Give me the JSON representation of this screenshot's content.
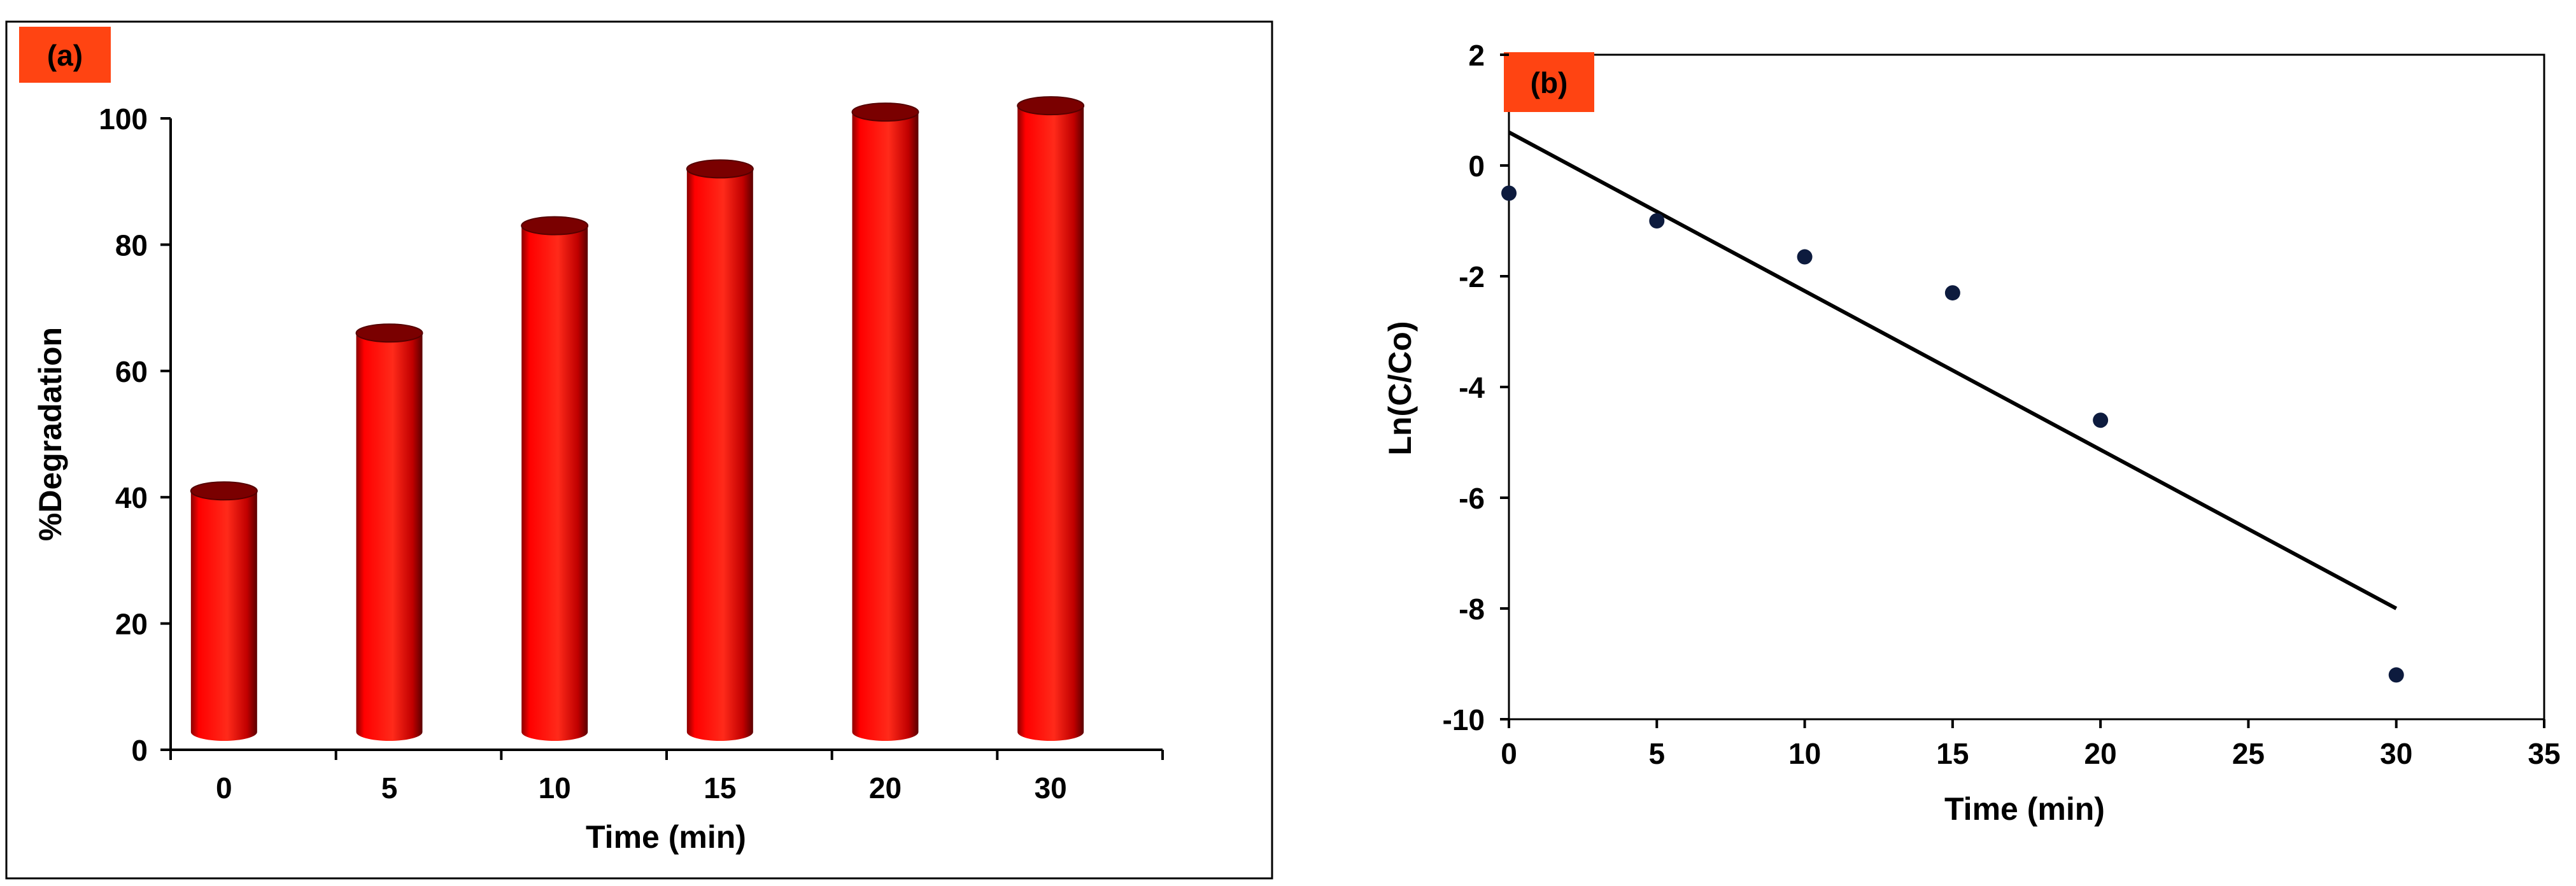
{
  "colors": {
    "bar": "#ff0000",
    "bar_dark": "#7a0000",
    "panel_label_bg": "#ff4412",
    "point": "#0d1b3e",
    "line": "#000000"
  },
  "chart_data": [
    {
      "type": "bar",
      "panel_label": "(a)",
      "categories": [
        "0",
        "5",
        "10",
        "15",
        "20",
        "30"
      ],
      "values": [
        41,
        66,
        83,
        92,
        101,
        102
      ],
      "xlabel": "Time (min)",
      "ylabel": "%Degradation",
      "ylim": [
        0,
        100
      ],
      "yticks": [
        0,
        20,
        40,
        60,
        80,
        100
      ],
      "style": "3d-cylinder",
      "grid": false
    },
    {
      "type": "scatter",
      "panel_label": "(b)",
      "x": [
        0,
        5,
        10,
        15,
        20,
        30
      ],
      "y": [
        -0.5,
        -1.0,
        -1.65,
        -2.3,
        -4.6,
        -9.2
      ],
      "fit_line": {
        "x": [
          0,
          30
        ],
        "y": [
          0.6,
          -8.0
        ]
      },
      "xlabel": "Time (min)",
      "ylabel": "Ln(C/Co)",
      "xlim": [
        0,
        35
      ],
      "ylim": [
        -10,
        2
      ],
      "xticks": [
        0,
        5,
        10,
        15,
        20,
        25,
        30,
        35
      ],
      "yticks": [
        2,
        0,
        -2,
        -4,
        -6,
        -8,
        -10
      ],
      "grid": false
    }
  ]
}
